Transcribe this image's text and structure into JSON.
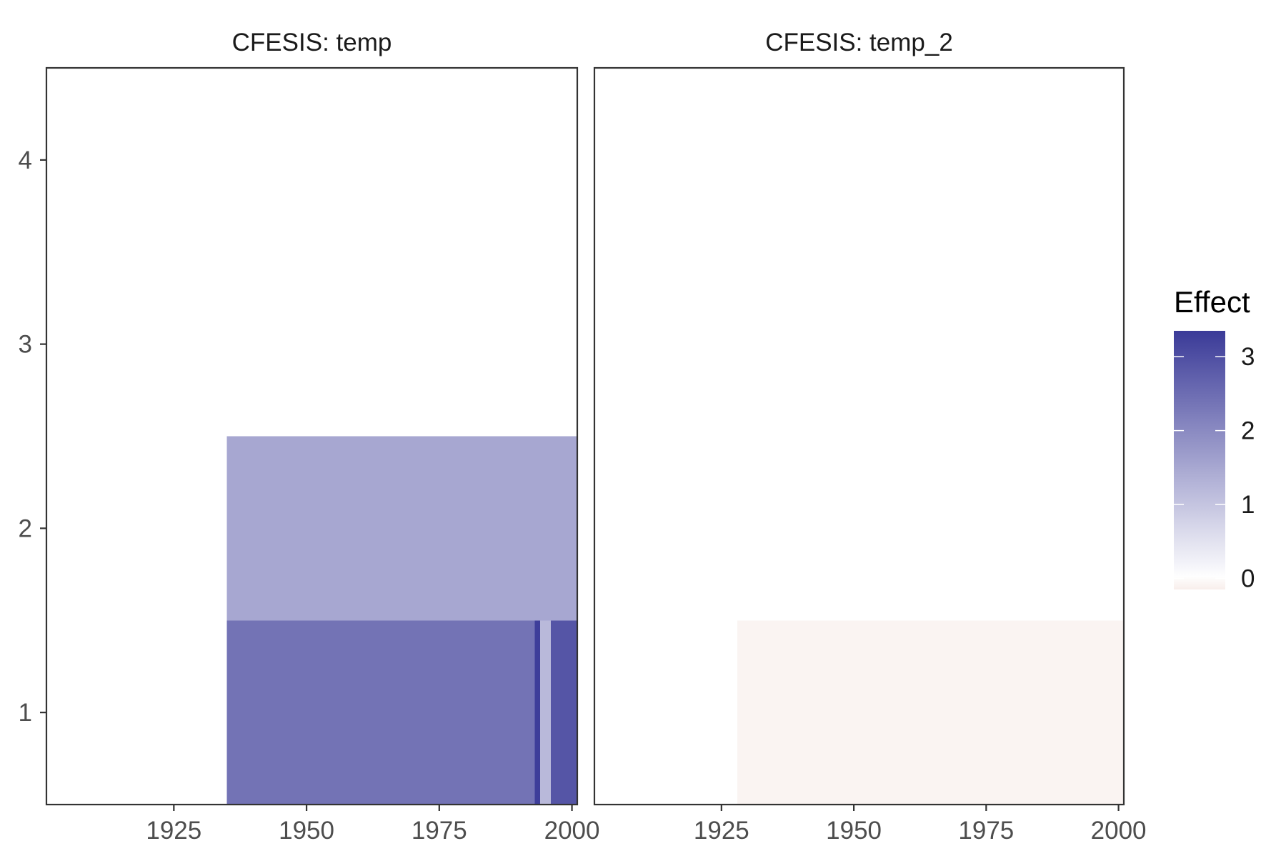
{
  "chart_data": {
    "type": "heatmap",
    "panels": [
      {
        "title": "CFESIS: temp",
        "xlim": [
          1901,
          2001
        ],
        "ylim": [
          0.5,
          4.5
        ],
        "x_ticks": [
          1925,
          1950,
          1975,
          2000
        ],
        "y_ticks": [
          1,
          2,
          3,
          4
        ],
        "tiles": [
          {
            "x0": 1935,
            "x1": 2001,
            "y0": 1.5,
            "y1": 2.5,
            "effect": 1.5
          },
          {
            "x0": 1935,
            "x1": 1993,
            "y0": 0.5,
            "y1": 1.5,
            "effect": 2.4
          },
          {
            "x0": 1993,
            "x1": 1994,
            "y0": 0.5,
            "y1": 1.5,
            "effect": 3.3
          },
          {
            "x0": 1994,
            "x1": 1996,
            "y0": 0.5,
            "y1": 1.5,
            "effect": 1.2
          },
          {
            "x0": 1996,
            "x1": 2001,
            "y0": 0.5,
            "y1": 1.5,
            "effect": 2.9
          }
        ]
      },
      {
        "title": "CFESIS: temp_2",
        "xlim": [
          1901,
          2001
        ],
        "ylim": [
          0.5,
          4.5
        ],
        "x_ticks": [
          1925,
          1950,
          1975,
          2000
        ],
        "y_ticks": [],
        "tiles": [
          {
            "x0": 1928,
            "x1": 2001,
            "y0": 0.5,
            "y1": 1.5,
            "effect": -0.1
          }
        ]
      }
    ],
    "legend": {
      "title": "Effect",
      "position": "right",
      "range": [
        -0.15,
        3.35
      ],
      "ticks": [
        0,
        1,
        2,
        3
      ]
    },
    "colors": {
      "low": "#f8eeeb",
      "zero": "#ffffff",
      "high": "#3b3b98",
      "axis": "#333333",
      "tick_text": "#4d4d4d"
    },
    "grid": false
  }
}
